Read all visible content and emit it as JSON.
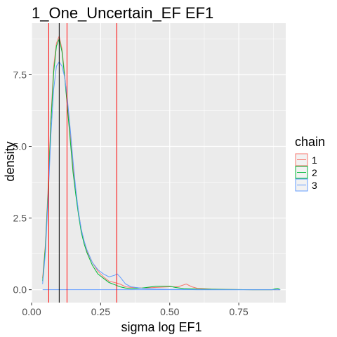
{
  "chart_data": {
    "type": "line",
    "title": "1_One_Uncertain_EF EF1",
    "xlabel": "sigma log EF1",
    "ylabel": "density",
    "xlim": [
      0,
      0.92
    ],
    "ylim": [
      -0.45,
      9.3
    ],
    "x_ticks": [
      0.0,
      0.25,
      0.5,
      0.75
    ],
    "x_tick_labels": [
      "0.00",
      "0.25",
      "0.50",
      "0.75"
    ],
    "y_ticks": [
      0,
      2.5,
      5.0,
      7.5
    ],
    "y_tick_labels": [
      "0.0",
      "2.5",
      "5.0",
      "7.5"
    ],
    "grid": true,
    "panel_background": "#ebebeb",
    "legend": {
      "title": "chain",
      "placement": "right",
      "entries": [
        "1",
        "2",
        "3"
      ]
    },
    "series": [
      {
        "name": "1",
        "color": "#F8766D",
        "x": [
          0.04,
          0.05,
          0.06,
          0.07,
          0.08,
          0.09,
          0.1,
          0.11,
          0.12,
          0.13,
          0.14,
          0.15,
          0.16,
          0.17,
          0.18,
          0.19,
          0.2,
          0.22,
          0.24,
          0.26,
          0.28,
          0.3,
          0.32,
          0.34,
          0.36,
          0.4,
          0.45,
          0.5,
          0.53,
          0.56,
          0.58,
          0.6,
          0.65,
          0.7,
          0.8,
          0.9
        ],
        "y": [
          0.4,
          1.6,
          3.6,
          6.0,
          7.8,
          8.6,
          8.85,
          8.4,
          7.5,
          6.4,
          5.4,
          4.3,
          3.4,
          2.7,
          2.1,
          1.7,
          1.35,
          0.95,
          0.65,
          0.45,
          0.3,
          0.25,
          0.2,
          0.1,
          0.08,
          0.06,
          0.08,
          0.1,
          0.1,
          0.2,
          0.1,
          0.05,
          0.02,
          0.01,
          0.0,
          0.0
        ]
      },
      {
        "name": "2",
        "color": "#00BA38",
        "x": [
          0.04,
          0.05,
          0.06,
          0.07,
          0.08,
          0.09,
          0.1,
          0.11,
          0.12,
          0.13,
          0.14,
          0.15,
          0.16,
          0.17,
          0.18,
          0.19,
          0.2,
          0.22,
          0.24,
          0.26,
          0.28,
          0.3,
          0.32,
          0.34,
          0.36,
          0.4,
          0.45,
          0.5,
          0.52,
          0.55,
          0.6,
          0.7,
          0.8,
          0.87,
          0.89,
          0.9
        ],
        "y": [
          0.3,
          1.5,
          3.4,
          5.8,
          7.6,
          8.5,
          8.75,
          8.3,
          7.4,
          6.3,
          5.2,
          4.1,
          3.3,
          2.6,
          2.0,
          1.6,
          1.3,
          0.85,
          0.55,
          0.4,
          0.25,
          0.18,
          0.1,
          0.06,
          0.04,
          0.06,
          0.12,
          0.12,
          0.08,
          0.04,
          0.02,
          0.01,
          0.0,
          0.0,
          0.05,
          0.0
        ]
      },
      {
        "name": "3",
        "color": "#619CFF",
        "x": [
          0.04,
          0.05,
          0.06,
          0.07,
          0.08,
          0.09,
          0.1,
          0.11,
          0.12,
          0.13,
          0.14,
          0.15,
          0.16,
          0.17,
          0.18,
          0.19,
          0.2,
          0.22,
          0.24,
          0.26,
          0.28,
          0.3,
          0.31,
          0.32,
          0.34,
          0.36,
          0.4,
          0.45,
          0.5,
          0.55,
          0.6,
          0.7,
          0.8,
          0.9
        ],
        "y": [
          0.2,
          1.3,
          3.2,
          5.4,
          7.0,
          7.8,
          7.95,
          7.8,
          7.4,
          6.6,
          5.6,
          4.5,
          3.5,
          2.7,
          2.1,
          1.7,
          1.4,
          0.95,
          0.7,
          0.55,
          0.45,
          0.5,
          0.55,
          0.45,
          0.2,
          0.1,
          0.05,
          0.02,
          0.01,
          0.01,
          0.0,
          0.0,
          0.0,
          0.0
        ]
      }
    ],
    "reference_lines": [
      {
        "x": 0.062,
        "color": "#ff0000"
      },
      {
        "x": 0.128,
        "color": "#ff0000"
      },
      {
        "x": 0.308,
        "color": "#ff0000"
      },
      {
        "x": 0.1,
        "color": "#000000"
      }
    ],
    "baseline": {
      "y": 0,
      "x_range": [
        0.04,
        0.9
      ],
      "color": "#619CFF"
    }
  }
}
